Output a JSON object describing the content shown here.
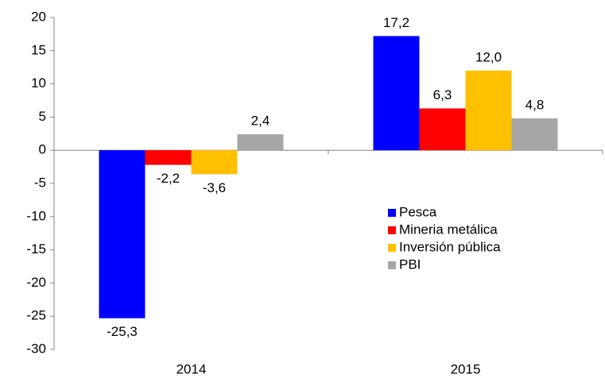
{
  "chart_data": {
    "type": "bar",
    "categories": [
      "2014",
      "2015"
    ],
    "series": [
      {
        "name": "Pesca",
        "color": "#0000ff",
        "values": [
          -25.3,
          17.2
        ],
        "value_labels": [
          "-25,3",
          "17,2"
        ]
      },
      {
        "name": "Mineria metálica",
        "color": "#ff0000",
        "values": [
          -2.2,
          6.3
        ],
        "value_labels": [
          "-2,2",
          "6,3"
        ]
      },
      {
        "name": "Inversión pública",
        "color": "#ffc000",
        "values": [
          -3.6,
          12.0
        ],
        "value_labels": [
          "-3,6",
          "12,0"
        ]
      },
      {
        "name": "PBI",
        "color": "#a6a6a6",
        "values": [
          2.4,
          4.8
        ],
        "value_labels": [
          "2,4",
          "4,8"
        ]
      }
    ],
    "ylim": [
      -30,
      20
    ],
    "yticks": [
      -30,
      -25,
      -20,
      -15,
      -10,
      -5,
      0,
      5,
      10,
      15,
      20
    ],
    "grid": false,
    "legend": "lower-right"
  }
}
